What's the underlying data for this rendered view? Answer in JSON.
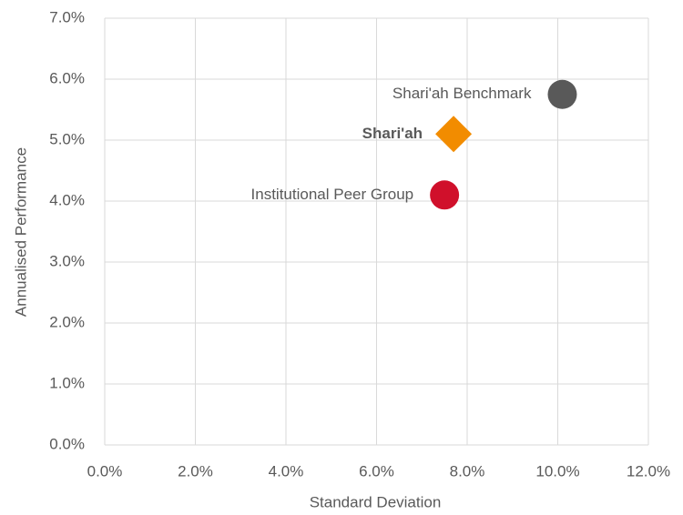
{
  "chart_data": {
    "type": "scatter",
    "xlabel": "Standard Deviation",
    "ylabel": "Annualised Performance",
    "xlim": [
      0,
      12
    ],
    "ylim": [
      0,
      7
    ],
    "xticks": [
      {
        "value": 0,
        "label": "0.0%"
      },
      {
        "value": 2,
        "label": "2.0%"
      },
      {
        "value": 4,
        "label": "4.0%"
      },
      {
        "value": 6,
        "label": "6.0%"
      },
      {
        "value": 8,
        "label": "8.0%"
      },
      {
        "value": 10,
        "label": "10.0%"
      },
      {
        "value": 12,
        "label": "12.0%"
      }
    ],
    "yticks": [
      {
        "value": 0,
        "label": "0.0%"
      },
      {
        "value": 1,
        "label": "1.0%"
      },
      {
        "value": 2,
        "label": "2.0%"
      },
      {
        "value": 3,
        "label": "3.0%"
      },
      {
        "value": 4,
        "label": "4.0%"
      },
      {
        "value": 5,
        "label": "5.0%"
      },
      {
        "value": 6,
        "label": "6.0%"
      },
      {
        "value": 7,
        "label": "7.0%"
      }
    ],
    "grid": true,
    "series": [
      {
        "name": "Shari'ah Benchmark",
        "color": "#595959",
        "marker": "circle",
        "x": [
          10.1
        ],
        "values": [
          5.75
        ]
      },
      {
        "name": "Shari'ah",
        "color": "#f28c00",
        "marker": "diamond",
        "bold": true,
        "x": [
          7.7
        ],
        "values": [
          5.1
        ]
      },
      {
        "name": "Institutional Peer Group",
        "color": "#d0102b",
        "marker": "circle",
        "x": [
          7.5
        ],
        "values": [
          4.1
        ]
      }
    ]
  }
}
